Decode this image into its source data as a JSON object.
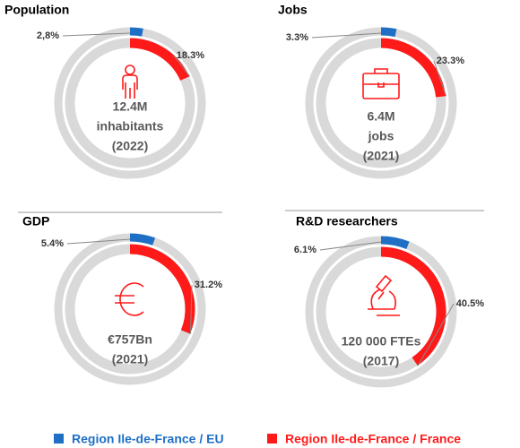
{
  "chart_data": [
    {
      "type": "donut",
      "title": "Population",
      "values": [
        2.8,
        18.3
      ],
      "value_labels": [
        "2,8%",
        "18.3%"
      ],
      "center_text": [
        "12.4M",
        "inhabitants",
        "(2022)"
      ]
    },
    {
      "type": "donut",
      "title": "Jobs",
      "values": [
        3.3,
        23.3
      ],
      "value_labels": [
        "3.3%",
        "23.3%"
      ],
      "center_text": [
        "6.4M",
        "jobs",
        "(2021)"
      ]
    },
    {
      "type": "donut",
      "title": "GDP",
      "values": [
        5.4,
        31.2
      ],
      "value_labels": [
        "5.4%",
        "31.2%"
      ],
      "center_text": [
        "€757Bn",
        "(2021)"
      ]
    },
    {
      "type": "donut",
      "title": "R&D researchers",
      "values": [
        6.1,
        40.5
      ],
      "value_labels": [
        "6.1%",
        "40.5%"
      ],
      "center_text": [
        "120 000 FTEs",
        "(2017)"
      ]
    }
  ],
  "legend": {
    "items": [
      {
        "name": "Region Ile-de-France / EU",
        "color": "#1f6fc5"
      },
      {
        "name": "Region Ile-de-France / France",
        "color": "#ff1a1a"
      }
    ]
  }
}
